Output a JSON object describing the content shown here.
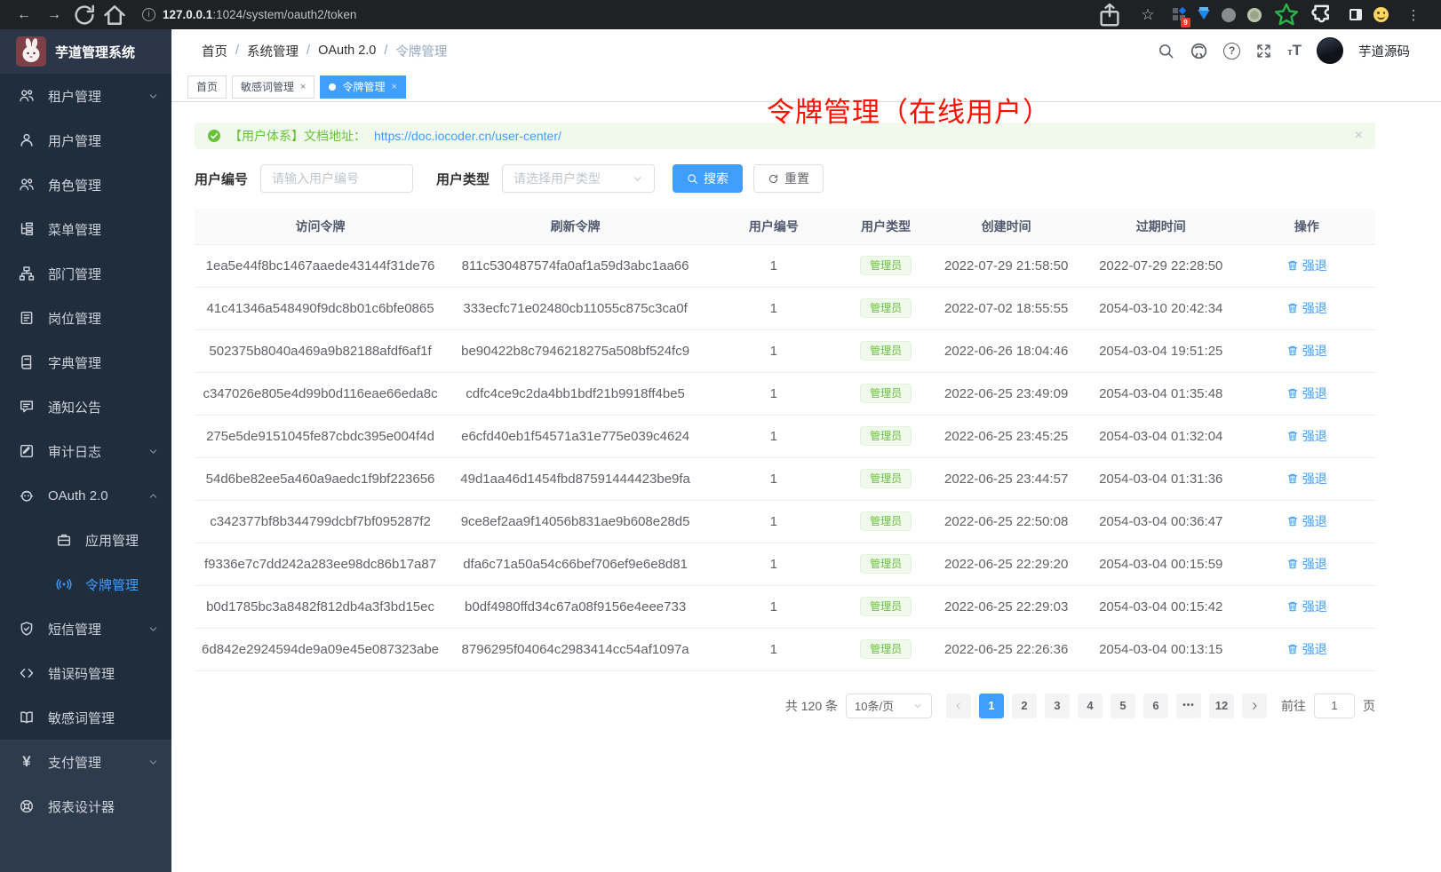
{
  "colors": {
    "accent": "#409eff",
    "success": "#67c23a",
    "annotation_red": "#fe1000",
    "sidebar_bg": "#1f2d3d"
  },
  "browser": {
    "url_host": "127.0.0.1",
    "url_path": ":1024/system/oauth2/token",
    "extension_badge": "9"
  },
  "sidebar": {
    "logo_title": "芋道管理系统",
    "items": [
      {
        "label": "租户管理",
        "icon": "tenants-icon",
        "chevron": "down"
      },
      {
        "label": "用户管理",
        "icon": "user-icon"
      },
      {
        "label": "角色管理",
        "icon": "role-icon"
      },
      {
        "label": "菜单管理",
        "icon": "menu-tree-icon"
      },
      {
        "label": "部门管理",
        "icon": "dept-icon"
      },
      {
        "label": "岗位管理",
        "icon": "post-icon"
      },
      {
        "label": "字典管理",
        "icon": "dict-icon"
      },
      {
        "label": "通知公告",
        "icon": "notice-icon"
      },
      {
        "label": "审计日志",
        "icon": "audit-icon",
        "chevron": "down"
      },
      {
        "label": "OAuth 2.0",
        "icon": "oauth-icon",
        "chevron": "up",
        "children": [
          {
            "label": "应用管理",
            "icon": "app-icon"
          },
          {
            "label": "令牌管理",
            "icon": "token-icon",
            "active": true
          }
        ]
      },
      {
        "label": "短信管理",
        "icon": "sms-icon",
        "chevron": "down"
      },
      {
        "label": "错误码管理",
        "icon": "errcode-icon"
      },
      {
        "label": "敏感词管理",
        "icon": "sensitive-icon"
      },
      {
        "label": "支付管理",
        "icon": "pay-icon",
        "chevron": "down",
        "section": "light"
      },
      {
        "label": "报表设计器",
        "icon": "report-icon",
        "section": "light"
      }
    ]
  },
  "header": {
    "breadcrumbs": [
      "首页",
      "系统管理",
      "OAuth 2.0",
      "令牌管理"
    ],
    "separator": "/",
    "user_name": "芋道源码"
  },
  "tabs": [
    {
      "label": "首页",
      "closable": false,
      "active": false
    },
    {
      "label": "敏感词管理",
      "closable": true,
      "active": false
    },
    {
      "label": "令牌管理",
      "closable": true,
      "active": true
    }
  ],
  "annotation": {
    "text": "令牌管理（在线用户）"
  },
  "alert": {
    "text": "【用户体系】文档地址：",
    "link": "https://doc.iocoder.cn/user-center/",
    "close": "×"
  },
  "filters": {
    "user_id_label": "用户编号",
    "user_id_placeholder": "请输入用户编号",
    "user_type_label": "用户类型",
    "user_type_placeholder": "请选择用户类型",
    "search_label": "搜索",
    "reset_label": "重置"
  },
  "table": {
    "headers": [
      "访问令牌",
      "刷新令牌",
      "用户编号",
      "用户类型",
      "创建时间",
      "过期时间",
      "操作"
    ],
    "action_label": "强退",
    "rows": [
      {
        "access": "1ea5e44f8bc1467aaede43144f31de76",
        "refresh": "811c530487574fa0af1a59d3abc1aa66",
        "user_id": "1",
        "user_type": "管理员",
        "created": "2022-07-29 21:58:50",
        "expires": "2022-07-29 22:28:50"
      },
      {
        "access": "41c41346a548490f9dc8b01c6bfe0865",
        "refresh": "333ecfc71e02480cb11055c875c3ca0f",
        "user_id": "1",
        "user_type": "管理员",
        "created": "2022-07-02 18:55:55",
        "expires": "2054-03-10 20:42:34"
      },
      {
        "access": "502375b8040a469a9b82188afdf6af1f",
        "refresh": "be90422b8c7946218275a508bf524fc9",
        "user_id": "1",
        "user_type": "管理员",
        "created": "2022-06-26 18:04:46",
        "expires": "2054-03-04 19:51:25"
      },
      {
        "access": "c347026e805e4d99b0d116eae66eda8c",
        "refresh": "cdfc4ce9c2da4bb1bdf21b9918ff4be5",
        "user_id": "1",
        "user_type": "管理员",
        "created": "2022-06-25 23:49:09",
        "expires": "2054-03-04 01:35:48"
      },
      {
        "access": "275e5de9151045fe87cbdc395e004f4d",
        "refresh": "e6cfd40eb1f54571a31e775e039c4624",
        "user_id": "1",
        "user_type": "管理员",
        "created": "2022-06-25 23:45:25",
        "expires": "2054-03-04 01:32:04"
      },
      {
        "access": "54d6be82ee5a460a9aedc1f9bf223656",
        "refresh": "49d1aa46d1454fbd87591444423be9fa",
        "user_id": "1",
        "user_type": "管理员",
        "created": "2022-06-25 23:44:57",
        "expires": "2054-03-04 01:31:36"
      },
      {
        "access": "c342377bf8b344799dcbf7bf095287f2",
        "refresh": "9ce8ef2aa9f14056b831ae9b608e28d5",
        "user_id": "1",
        "user_type": "管理员",
        "created": "2022-06-25 22:50:08",
        "expires": "2054-03-04 00:36:47"
      },
      {
        "access": "f9336e7c7dd242a283ee98dc86b17a87",
        "refresh": "dfa6c71a50a54c66bef706ef9e6e8d81",
        "user_id": "1",
        "user_type": "管理员",
        "created": "2022-06-25 22:29:20",
        "expires": "2054-03-04 00:15:59"
      },
      {
        "access": "b0d1785bc3a8482f812db4a3f3bd15ec",
        "refresh": "b0df4980ffd34c67a08f9156e4eee733",
        "user_id": "1",
        "user_type": "管理员",
        "created": "2022-06-25 22:29:03",
        "expires": "2054-03-04 00:15:42"
      },
      {
        "access": "6d842e2924594de9a09e45e087323abe",
        "refresh": "8796295f04064c2983414cc54af1097a",
        "user_id": "1",
        "user_type": "管理员",
        "created": "2022-06-25 22:26:36",
        "expires": "2054-03-04 00:13:15"
      }
    ]
  },
  "pagination": {
    "total": "共 120 条",
    "page_size": "10条/页",
    "pages": [
      "1",
      "2",
      "3",
      "4",
      "5",
      "6",
      "•••",
      "12"
    ],
    "active_page": "1",
    "goto_label": "前往",
    "goto_value": "1",
    "page_unit": "页"
  }
}
